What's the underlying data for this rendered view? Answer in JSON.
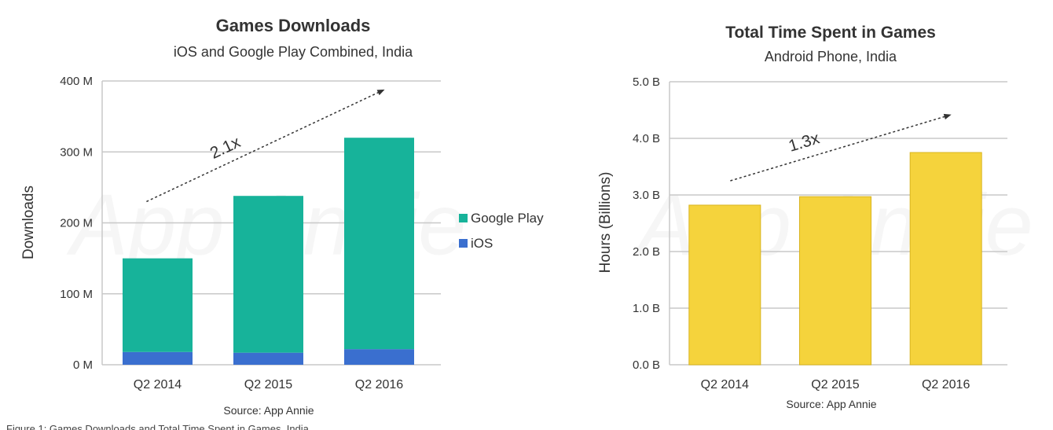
{
  "chart_data": [
    {
      "type": "bar",
      "stacked": true,
      "title": "Games Downloads",
      "subtitle": "iOS and Google Play Combined, India",
      "xlabel": "",
      "ylabel": "Downloads",
      "categories": [
        "Q2 2014",
        "Q2 2015",
        "Q2 2016"
      ],
      "series": [
        {
          "name": "iOS",
          "color": "#3a6fcf",
          "values": [
            18,
            17,
            22
          ]
        },
        {
          "name": "Google Play",
          "color": "#17b39a",
          "values": [
            132,
            221,
            298
          ]
        }
      ],
      "ylim": [
        0,
        400
      ],
      "yticks": [
        0,
        100,
        200,
        300,
        400
      ],
      "ytick_labels": [
        "0 M",
        "100 M",
        "200 M",
        "300 M",
        "400 M"
      ],
      "grid": true,
      "legend": "right",
      "legend_entries": [
        "Google Play",
        "iOS"
      ],
      "annotation": {
        "label": "2.1x",
        "from": [
          0.4,
          230
        ],
        "to": [
          2.55,
          388
        ]
      },
      "source": "Source: App Annie",
      "watermark": "App Annie"
    },
    {
      "type": "bar",
      "title": "Total Time Spent in Games",
      "subtitle": "Android Phone, India",
      "xlabel": "",
      "ylabel": "Hours (Billions)",
      "categories": [
        "Q2 2014",
        "Q2 2015",
        "Q2 2016"
      ],
      "series": [
        {
          "name": "",
          "color": "#f5d33c",
          "values": [
            2.82,
            2.97,
            3.75
          ]
        }
      ],
      "ylim": [
        0,
        5
      ],
      "yticks": [
        0,
        1,
        2,
        3,
        4,
        5
      ],
      "ytick_labels": [
        "0.0 B",
        "1.0 B",
        "2.0 B",
        "3.0 B",
        "4.0 B",
        "5.0 B"
      ],
      "grid": true,
      "legend": "none",
      "annotation": {
        "label": "1.3x",
        "from": [
          0.55,
          3.25
        ],
        "to": [
          2.55,
          4.42
        ]
      },
      "source": "Source: App Annie",
      "watermark": "App Annie"
    }
  ],
  "footer_text": "Figure 1: Games Downloads and Total Time Spent in Games, India"
}
